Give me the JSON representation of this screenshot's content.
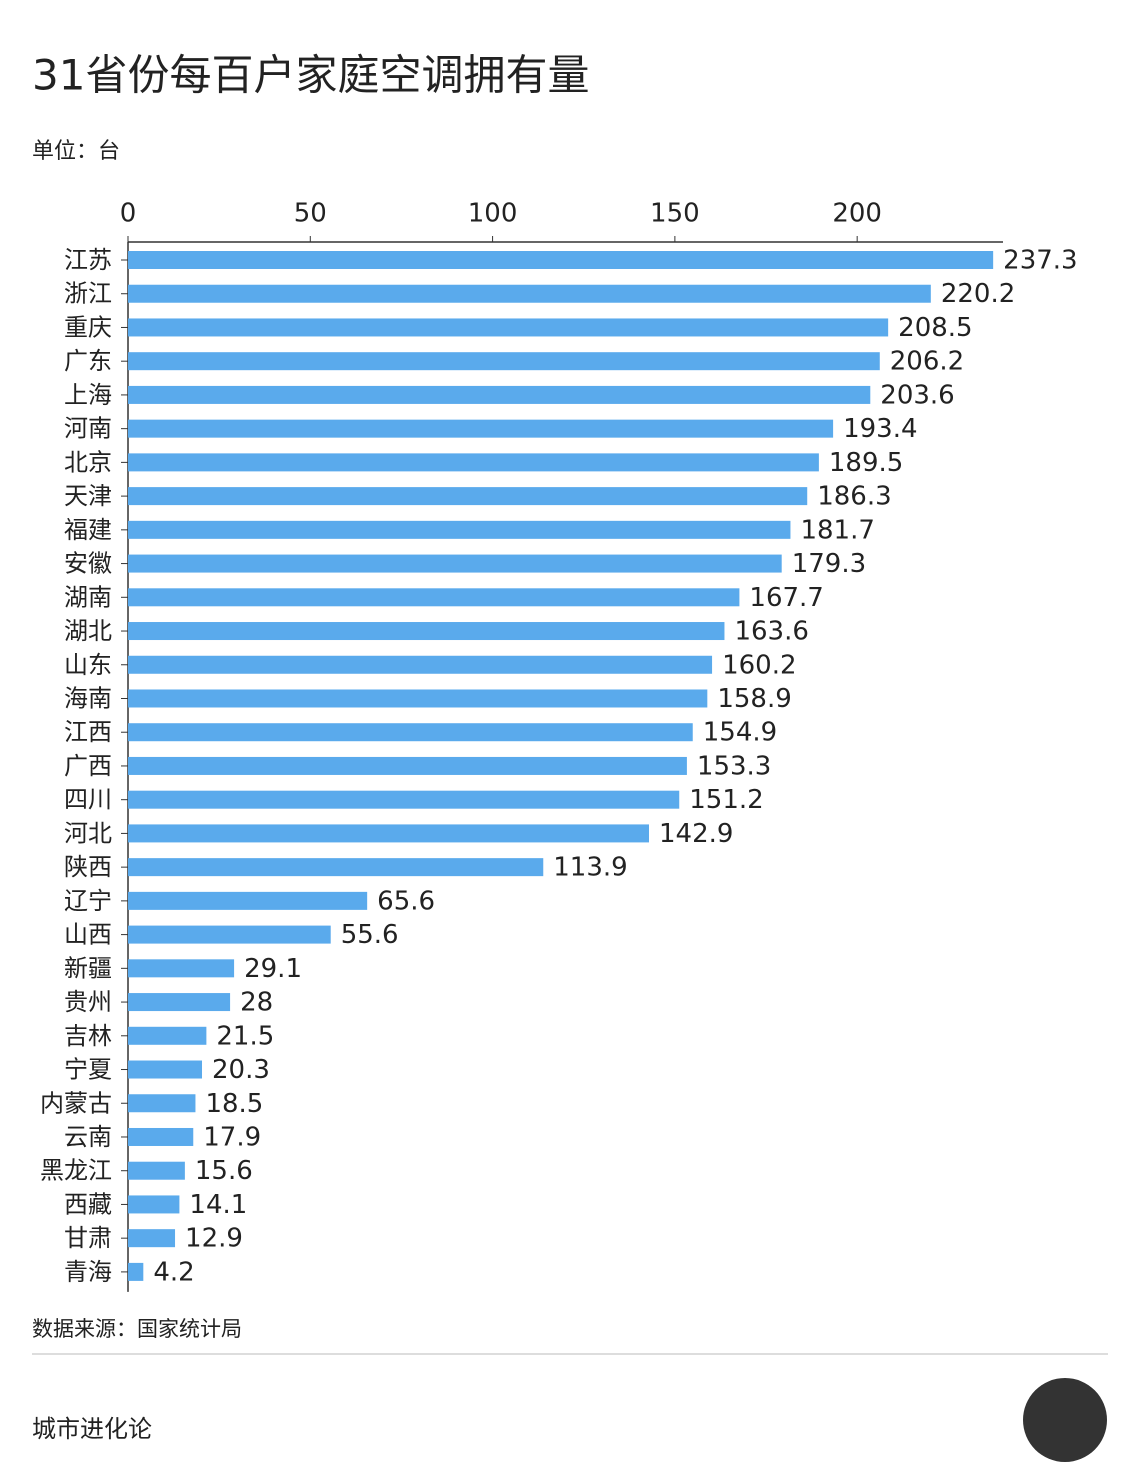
{
  "chart_data": {
    "type": "hbar",
    "title": "31省份每百户家庭空调拥有量",
    "subtitle": "单位：台",
    "source": "数据来源：国家统计局",
    "brand": "城市进化论",
    "categories": [
      "江苏",
      "浙江",
      "重庆",
      "广东",
      "上海",
      "河南",
      "北京",
      "天津",
      "福建",
      "安徽",
      "湖南",
      "湖北",
      "山东",
      "海南",
      "江西",
      "广西",
      "四川",
      "河北",
      "陕西",
      "辽宁",
      "山西",
      "新疆",
      "贵州",
      "吉林",
      "宁夏",
      "内蒙古",
      "云南",
      "黑龙江",
      "西藏",
      "甘肃",
      "青海"
    ],
    "values": [
      237.3,
      220.2,
      208.5,
      206.2,
      203.6,
      193.4,
      189.5,
      186.3,
      181.7,
      179.3,
      167.7,
      163.6,
      160.2,
      158.9,
      154.9,
      153.3,
      151.2,
      142.9,
      113.9,
      65.6,
      55.6,
      29.1,
      28,
      21.5,
      20.3,
      18.5,
      17.9,
      15.6,
      14.1,
      12.9,
      4.2
    ],
    "color": "#5aaaec",
    "xlim": [
      0,
      240
    ],
    "xticks": [
      0,
      50,
      100,
      150,
      200
    ],
    "grid": false
  }
}
